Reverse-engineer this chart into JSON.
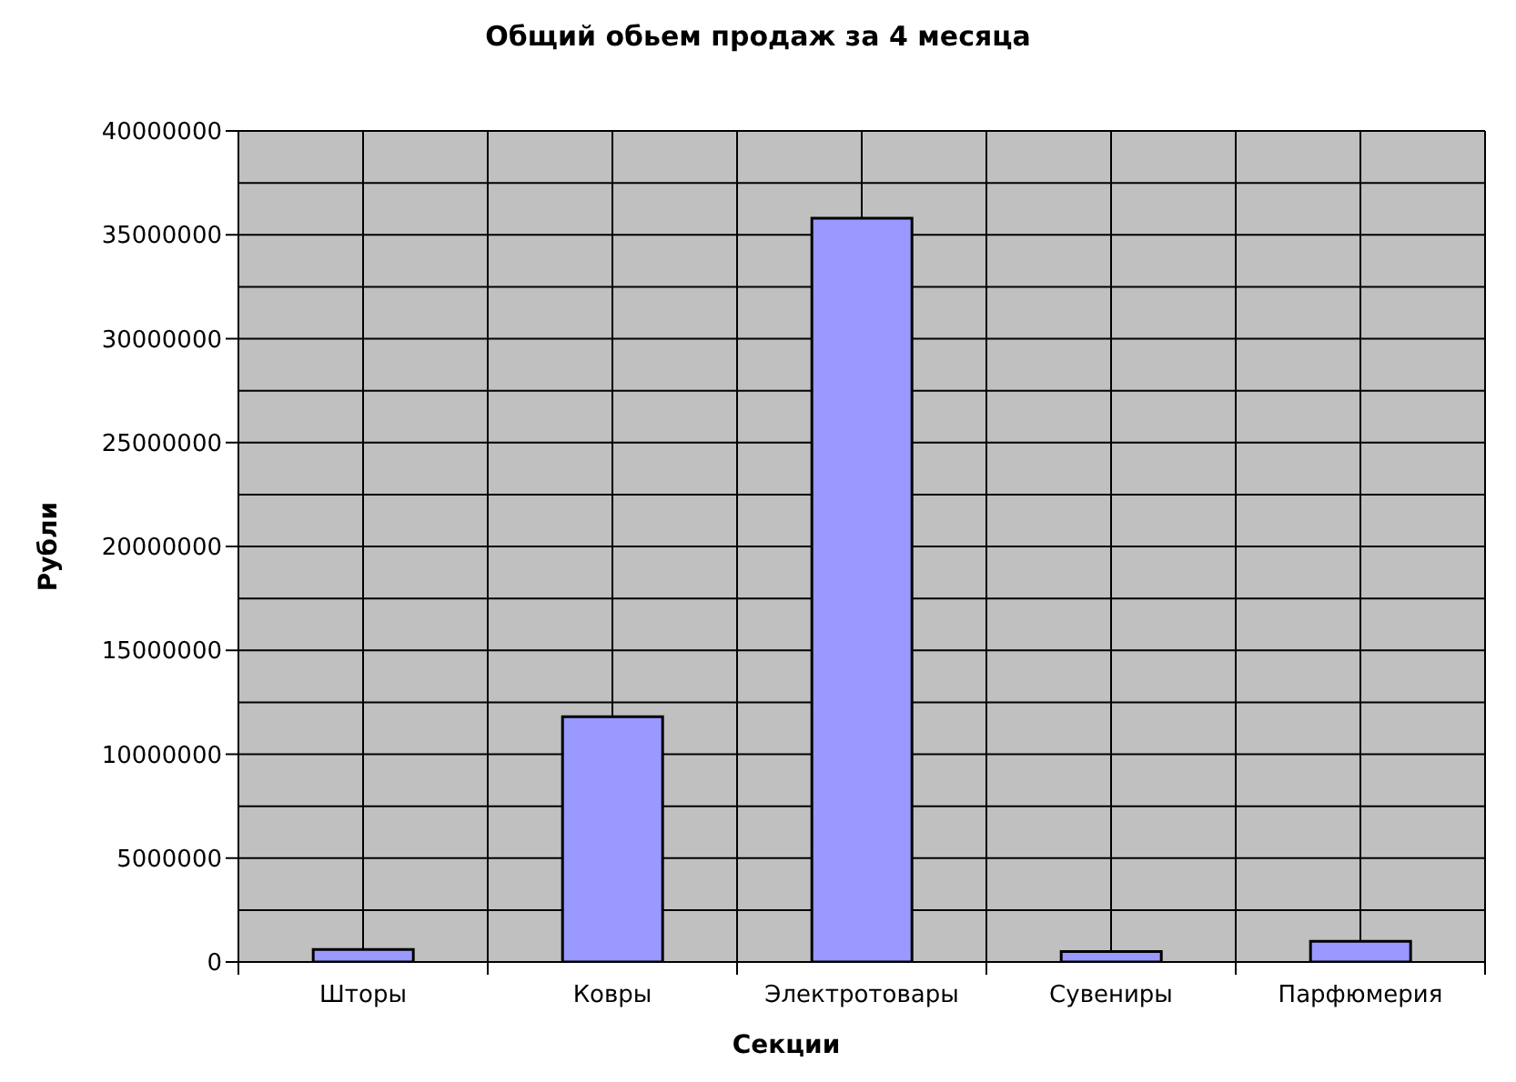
{
  "chart_data": {
    "type": "bar",
    "title": "Общий обьем продаж за 4 месяца",
    "xlabel": "Секции",
    "ylabel": "Рубли",
    "categories": [
      "Шторы",
      "Ковры",
      "Электротовары",
      "Сувениры",
      "Парфюмерия"
    ],
    "values": [
      600000,
      11800000,
      35800000,
      500000,
      1000000
    ],
    "color": "#9999ff",
    "ylim": [
      0,
      40000000
    ],
    "yticks": [
      0,
      {
        "value": 2500000,
        "label": null
      },
      5000000,
      {
        "value": 7500000,
        "label": null
      },
      10000000,
      {
        "value": 12500000,
        "label": null
      },
      15000000,
      {
        "value": 17500000,
        "label": null
      },
      20000000,
      {
        "value": 22500000,
        "label": null
      },
      25000000,
      {
        "value": 27500000,
        "label": null
      },
      30000000,
      {
        "value": 32500000,
        "label": null
      },
      35000000,
      {
        "value": 37500000,
        "label": null
      },
      40000000
    ],
    "grid": true
  }
}
